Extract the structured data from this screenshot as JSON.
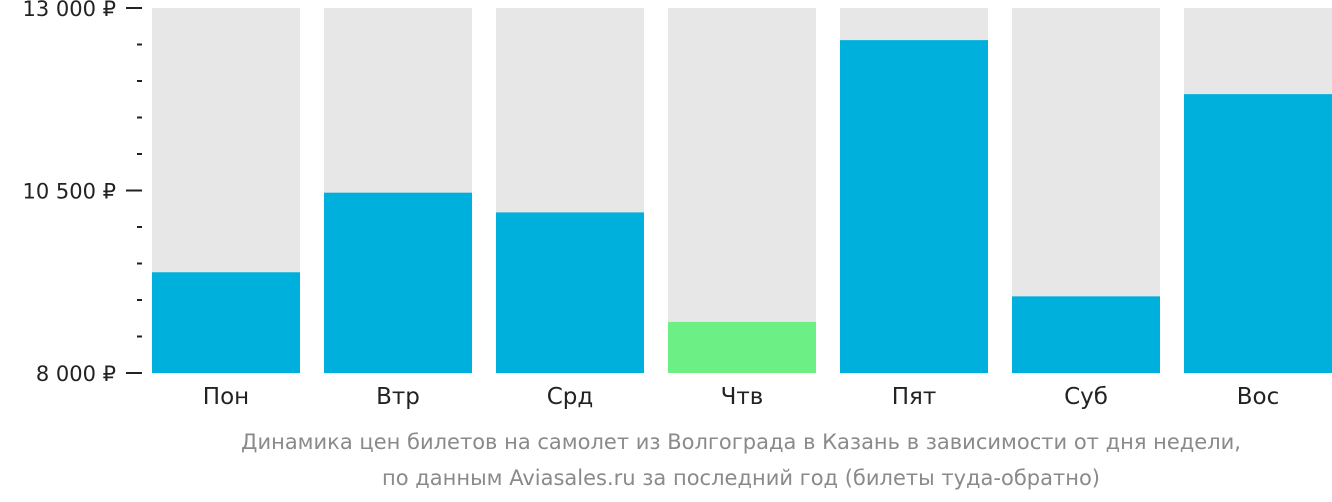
{
  "chart_data": {
    "type": "bar",
    "categories": [
      "Пон",
      "Втр",
      "Срд",
      "Чтв",
      "Пят",
      "Суб",
      "Вос"
    ],
    "values": [
      9380,
      10470,
      10200,
      8700,
      12560,
      9050,
      11820
    ],
    "ylim": [
      8000,
      13000
    ],
    "yticks": [
      {
        "value": 13000,
        "label": "13 000 ₽"
      },
      {
        "value": 10500,
        "label": "10 500 ₽"
      },
      {
        "value": 8000,
        "label": "8 000 ₽"
      }
    ],
    "minor_tick_step": 500,
    "highlight_index": 3,
    "caption_line1": "Динамика цен билетов на самолет из Волгограда в Казань в зависимости от дня недели,",
    "caption_line2": "по данным Aviasales.ru за последний год (билеты туда-обратно)",
    "colors": {
      "bar": "#00b0dc",
      "bar_highlight": "#6cf086",
      "bar_background": "#e7e7e7",
      "axis": "#222222",
      "caption": "#8a8a8a"
    }
  }
}
